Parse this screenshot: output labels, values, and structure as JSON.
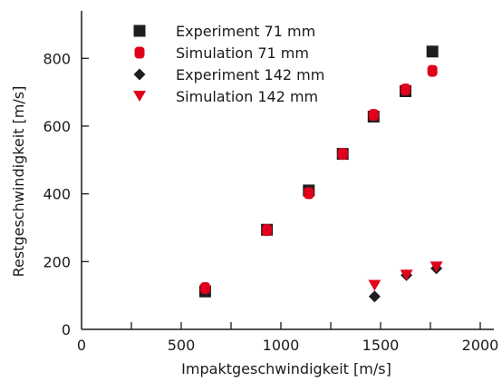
{
  "chart_data": {
    "type": "scatter",
    "title": "",
    "xlabel": "Impaktgeschwindigkeit [m/s]",
    "ylabel": "Restgeschwindigkeit [m/s]",
    "xlim": [
      0,
      2000
    ],
    "ylim": [
      0,
      940
    ],
    "x_ticks": [
      0,
      500,
      1000,
      1500,
      2000
    ],
    "x_minor_ticks": [
      250,
      750,
      1250,
      1750
    ],
    "y_ticks": [
      0,
      200,
      400,
      600,
      800
    ],
    "grid": false,
    "legend_position": "top-left",
    "series": [
      {
        "name": "Experiment 71 mm",
        "marker": "square",
        "color": "#1e1e1e",
        "points": [
          [
            620,
            112
          ],
          [
            930,
            294
          ],
          [
            1140,
            410
          ],
          [
            1310,
            518
          ],
          [
            1465,
            628
          ],
          [
            1625,
            703
          ],
          [
            1760,
            820
          ]
        ]
      },
      {
        "name": "Simulation 71 mm",
        "marker": "rounded-rect",
        "color": "#e0001b",
        "points": [
          [
            620,
            122
          ],
          [
            930,
            293
          ],
          [
            1140,
            402
          ],
          [
            1310,
            518
          ],
          [
            1465,
            633
          ],
          [
            1625,
            708
          ],
          [
            1760,
            763
          ]
        ]
      },
      {
        "name": "Experiment 142 mm",
        "marker": "diamond",
        "color": "#1e1e1e",
        "points": [
          [
            1470,
            97
          ],
          [
            1630,
            160
          ],
          [
            1780,
            180
          ]
        ]
      },
      {
        "name": "Simulation 142 mm",
        "marker": "triangle-down",
        "color": "#e0001b",
        "points": [
          [
            1470,
            130
          ],
          [
            1630,
            160
          ],
          [
            1780,
            184
          ]
        ]
      }
    ]
  }
}
